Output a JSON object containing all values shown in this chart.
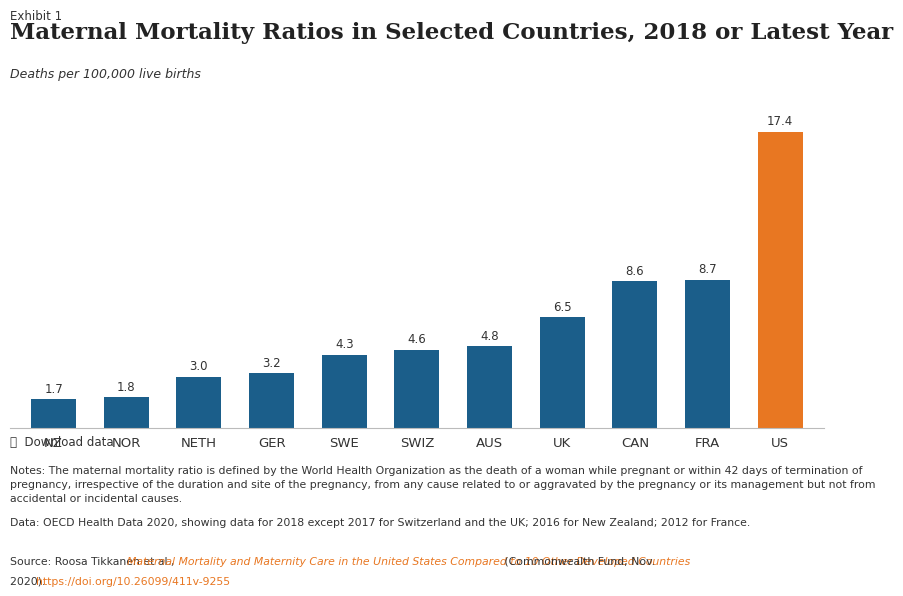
{
  "exhibit_label": "Exhibit 1",
  "title": "Maternal Mortality Ratios in Selected Countries, 2018 or Latest Year",
  "subtitle": "Deaths per 100,000 live births",
  "categories": [
    "NZ",
    "NOR",
    "NETH",
    "GER",
    "SWE",
    "SWIZ",
    "AUS",
    "UK",
    "CAN",
    "FRA",
    "US"
  ],
  "values": [
    1.7,
    1.8,
    3.0,
    3.2,
    4.3,
    4.6,
    4.8,
    6.5,
    8.6,
    8.7,
    17.4
  ],
  "bar_colors": [
    "#1b5e8a",
    "#1b5e8a",
    "#1b5e8a",
    "#1b5e8a",
    "#1b5e8a",
    "#1b5e8a",
    "#1b5e8a",
    "#1b5e8a",
    "#1b5e8a",
    "#1b5e8a",
    "#e87722"
  ],
  "orange_color": "#e87722",
  "title_color": "#222222",
  "note_text_line1": "Notes: The maternal mortality ratio is defined by the World Health Organization as the death of a woman while pregnant or within 42 days of termination of",
  "note_text_line2": "pregnancy, irrespective of the duration and site of the pregnancy, from any cause related to or aggravated by the pregnancy or its management but not from",
  "note_text_line3": "accidental or incidental causes.",
  "data_text": "Data: OECD Health Data 2020, showing data for 2018 except 2017 for Switzerland and the UK; 2016 for New Zealand; 2012 for France.",
  "source_plain1": "Source: Roosa Tikkanen et al., ",
  "source_italic_link": "Maternal Mortality and Maternity Care in the United States Compared to 10 Other Developed Countries",
  "source_plain2": " (Commonwealth Fund, Nov.",
  "source_plain3": "2020). ",
  "source_url": "https://doi.org/10.26099/411v-9255",
  "download_text": "Download data",
  "ylim": [
    0,
    20
  ],
  "bg_color": "#ffffff",
  "axis_color": "#bbbbbb",
  "text_color_dark": "#333333"
}
